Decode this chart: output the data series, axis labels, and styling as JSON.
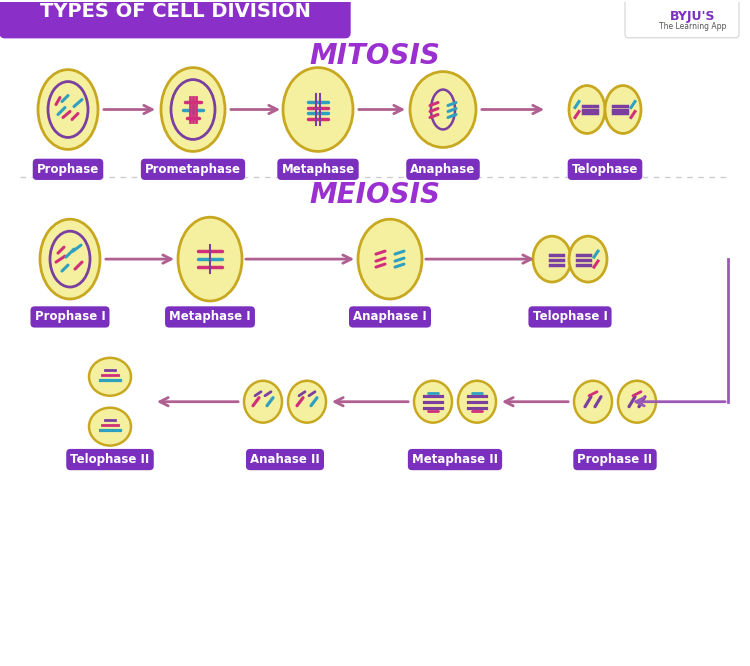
{
  "title": "TYPES OF CELL DIVISION",
  "title_bg": "#8B2FC9",
  "bg_color": "#FFFFFF",
  "mitosis_title": "MITOSIS",
  "meiosis_title": "MEIOSIS",
  "section_title_color": "#9B30D0",
  "header_text_color": "#FFFFFF",
  "cell_fill": "#F5F0A0",
  "cell_stroke": "#C8A820",
  "label_bg": "#7B2FBE",
  "label_text_color": "#FFFFFF",
  "arrow_color": "#B06090",
  "mitosis_labels": [
    "Prophase",
    "Prometaphase",
    "Metaphase",
    "Anaphase",
    "Telophase"
  ],
  "meiosis1_labels": [
    "Prophase I",
    "Metaphase I",
    "Anaphase I",
    "Telophase I"
  ],
  "meiosis2_labels": [
    "Telophase II",
    "Anahase II",
    "Metaphase II",
    "Prophase II"
  ],
  "connector_color": "#9B59B6",
  "dashed_line_color": "#CCCCCC"
}
